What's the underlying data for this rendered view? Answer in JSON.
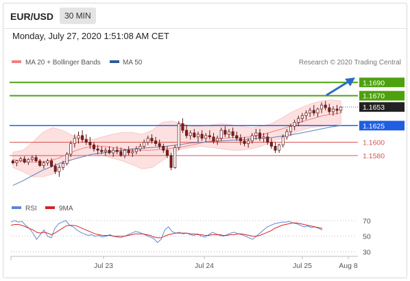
{
  "header": {
    "symbol": "EUR/USD",
    "timeframe": "30 MIN",
    "datetime": "Monday, July 27, 2020 1:51:08 AM CET"
  },
  "legend": {
    "ma20_bb": "MA 20 + Bollinger Bands",
    "ma50": "MA 50",
    "source": "Research © 2020 Trading Central"
  },
  "rsi_legend": {
    "rsi": "RSI",
    "ma9": "9MA"
  },
  "colors": {
    "resistance": "#4ea10e",
    "support": "#1f5fe0",
    "support_weak": "#d9534f",
    "current": "#222222",
    "candle_up": "#ffffff",
    "candle_down": "#8a1a1a",
    "ma20": "#f08080",
    "ma50": "#5b7fb8",
    "bb_fill": "#fde0e0",
    "rsi": "#5b85d6",
    "rsi_ma": "#d62222",
    "arrow": "#2a6cc4"
  },
  "chart_data": [
    {
      "type": "line",
      "title": "",
      "levels": {
        "resistance": [
          1.169,
          1.167
        ],
        "current": 1.1653,
        "pivot": 1.1625,
        "support": [
          1.16,
          1.158
        ],
        "labels": [
          "1.1690",
          "1.1670",
          "1.1653",
          "1.1625",
          "1.1600",
          "1.1580"
        ]
      },
      "x_ticks": [
        "Jul 23",
        "Jul 24",
        "Jul 25",
        "Aug 8"
      ],
      "ylim": [
        1.1515,
        1.1715
      ],
      "candles": [
        [
          1.1572,
          1.1574,
          1.1567,
          1.1569
        ],
        [
          1.1569,
          1.1573,
          1.1564,
          1.1572
        ],
        [
          1.1572,
          1.1578,
          1.157,
          1.1575
        ],
        [
          1.1575,
          1.1579,
          1.1568,
          1.157
        ],
        [
          1.157,
          1.1576,
          1.1566,
          1.1574
        ],
        [
          1.1574,
          1.158,
          1.1571,
          1.1577
        ],
        [
          1.1577,
          1.1581,
          1.157,
          1.1572
        ],
        [
          1.1572,
          1.1575,
          1.1563,
          1.1565
        ],
        [
          1.1565,
          1.1572,
          1.156,
          1.1569
        ],
        [
          1.1569,
          1.1575,
          1.1565,
          1.1572
        ],
        [
          1.1572,
          1.1576,
          1.1562,
          1.1564
        ],
        [
          1.1564,
          1.1568,
          1.1552,
          1.1556
        ],
        [
          1.1556,
          1.1566,
          1.1548,
          1.1562
        ],
        [
          1.1562,
          1.1572,
          1.1558,
          1.1568
        ],
        [
          1.1568,
          1.1585,
          1.1565,
          1.1582
        ],
        [
          1.1582,
          1.1602,
          1.1578,
          1.1598
        ],
        [
          1.1598,
          1.1612,
          1.1592,
          1.1606
        ],
        [
          1.1606,
          1.1616,
          1.1598,
          1.161
        ],
        [
          1.161,
          1.1618,
          1.16,
          1.1604
        ],
        [
          1.1604,
          1.1612,
          1.1596,
          1.16
        ],
        [
          1.16,
          1.1608,
          1.159,
          1.1596
        ],
        [
          1.1596,
          1.16,
          1.1586,
          1.159
        ],
        [
          1.159,
          1.1596,
          1.1582,
          1.1588
        ],
        [
          1.1588,
          1.1594,
          1.1582,
          1.1586
        ],
        [
          1.1586,
          1.1592,
          1.158,
          1.1588
        ],
        [
          1.1588,
          1.1594,
          1.1582,
          1.1584
        ],
        [
          1.1584,
          1.1592,
          1.1578,
          1.1588
        ],
        [
          1.1588,
          1.1594,
          1.1582,
          1.1586
        ],
        [
          1.1586,
          1.1592,
          1.1578,
          1.158
        ],
        [
          1.158,
          1.159,
          1.1576,
          1.1588
        ],
        [
          1.1588,
          1.1594,
          1.158,
          1.1584
        ],
        [
          1.1584,
          1.159,
          1.1578,
          1.1586
        ],
        [
          1.1586,
          1.1594,
          1.1582,
          1.159
        ],
        [
          1.159,
          1.1598,
          1.1586,
          1.1594
        ],
        [
          1.1594,
          1.1604,
          1.159,
          1.16
        ],
        [
          1.16,
          1.161,
          1.1596,
          1.1606
        ],
        [
          1.1606,
          1.1612,
          1.1598,
          1.1602
        ],
        [
          1.1602,
          1.1608,
          1.1594,
          1.1598
        ],
        [
          1.1598,
          1.1604,
          1.159,
          1.1594
        ],
        [
          1.1594,
          1.1598,
          1.1584,
          1.1588
        ],
        [
          1.1588,
          1.1594,
          1.1576,
          1.158
        ],
        [
          1.158,
          1.1584,
          1.1558,
          1.1562
        ],
        [
          1.1562,
          1.1596,
          1.156,
          1.1592
        ],
        [
          1.1592,
          1.1632,
          1.1588,
          1.1628
        ],
        [
          1.1628,
          1.1636,
          1.1614,
          1.1618
        ],
        [
          1.1618,
          1.1626,
          1.1606,
          1.161
        ],
        [
          1.161,
          1.1618,
          1.1604,
          1.1614
        ],
        [
          1.1614,
          1.162,
          1.1606,
          1.1608
        ],
        [
          1.1608,
          1.1616,
          1.16,
          1.1612
        ],
        [
          1.1612,
          1.1618,
          1.1602,
          1.1606
        ],
        [
          1.1606,
          1.1614,
          1.16,
          1.161
        ],
        [
          1.161,
          1.1618,
          1.1604,
          1.1608
        ],
        [
          1.1608,
          1.1614,
          1.1598,
          1.1602
        ],
        [
          1.1602,
          1.161,
          1.1596,
          1.1606
        ],
        [
          1.1606,
          1.1622,
          1.1602,
          1.1618
        ],
        [
          1.1618,
          1.1624,
          1.1608,
          1.1612
        ],
        [
          1.1612,
          1.162,
          1.1606,
          1.1616
        ],
        [
          1.1616,
          1.1622,
          1.1606,
          1.161
        ],
        [
          1.161,
          1.1616,
          1.1602,
          1.1606
        ],
        [
          1.1606,
          1.1612,
          1.1596,
          1.1602
        ],
        [
          1.1602,
          1.1608,
          1.1594,
          1.1598
        ],
        [
          1.1598,
          1.1606,
          1.1592,
          1.1602
        ],
        [
          1.1602,
          1.1614,
          1.1598,
          1.161
        ],
        [
          1.161,
          1.162,
          1.1604,
          1.1614
        ],
        [
          1.1614,
          1.162,
          1.1602,
          1.1606
        ],
        [
          1.1606,
          1.1614,
          1.16,
          1.1608
        ],
        [
          1.1608,
          1.1614,
          1.1596,
          1.16
        ],
        [
          1.16,
          1.1606,
          1.159,
          1.1594
        ],
        [
          1.1594,
          1.16,
          1.1584,
          1.1588
        ],
        [
          1.1588,
          1.1598,
          1.1584,
          1.1596
        ],
        [
          1.1596,
          1.1612,
          1.1592,
          1.1608
        ],
        [
          1.1608,
          1.162,
          1.1604,
          1.1616
        ],
        [
          1.1616,
          1.1628,
          1.161,
          1.1624
        ],
        [
          1.1624,
          1.1634,
          1.1618,
          1.163
        ],
        [
          1.163,
          1.164,
          1.1624,
          1.1636
        ],
        [
          1.1636,
          1.1644,
          1.163,
          1.164
        ],
        [
          1.164,
          1.1648,
          1.1634,
          1.1644
        ],
        [
          1.1644,
          1.1652,
          1.1638,
          1.1648
        ],
        [
          1.1648,
          1.1656,
          1.164,
          1.1644
        ],
        [
          1.1644,
          1.1652,
          1.1638,
          1.165
        ],
        [
          1.165,
          1.166,
          1.1644,
          1.1656
        ],
        [
          1.1656,
          1.1662,
          1.1648,
          1.1652
        ],
        [
          1.1652,
          1.1658,
          1.1642,
          1.1646
        ],
        [
          1.1646,
          1.1654,
          1.164,
          1.165
        ],
        [
          1.165,
          1.1656,
          1.1642,
          1.1648
        ],
        [
          1.1648,
          1.1654,
          1.1644,
          1.1653
        ]
      ],
      "ma20": [
        1.1574,
        1.1572,
        1.157,
        1.157,
        1.1572,
        1.1576,
        1.1582,
        1.1588,
        1.1592,
        1.1594,
        1.1594,
        1.1592,
        1.159,
        1.1588,
        1.1588,
        1.1588,
        1.1589,
        1.159,
        1.1592,
        1.1594,
        1.1597,
        1.16,
        1.1603,
        1.1606,
        1.1607,
        1.1607,
        1.1608,
        1.161,
        1.1614,
        1.1618,
        1.1622,
        1.1627,
        1.1632,
        1.1636,
        1.164,
        1.1642,
        1.1644
      ],
      "ma50": [
        1.1535,
        1.1542,
        1.155,
        1.1558,
        1.1564,
        1.157,
        1.1574,
        1.1578,
        1.1582,
        1.1584,
        1.1586,
        1.1588,
        1.159,
        1.1591,
        1.1592,
        1.1593,
        1.1595,
        1.1597,
        1.1599,
        1.16,
        1.1601,
        1.1602,
        1.1603,
        1.1604,
        1.1605,
        1.1606,
        1.1607,
        1.1609,
        1.1611,
        1.1614,
        1.1617,
        1.162,
        1.1623,
        1.1625
      ],
      "bb_upper": [
        1.1585,
        1.1588,
        1.16,
        1.1615,
        1.1622,
        1.1618,
        1.161,
        1.1606,
        1.1604,
        1.1608,
        1.1612,
        1.1615,
        1.1615,
        1.1612,
        1.1618,
        1.163,
        1.1632,
        1.1628,
        1.1624,
        1.1624,
        1.1626,
        1.1628,
        1.1626,
        1.1624,
        1.1622,
        1.1624,
        1.1628,
        1.1636,
        1.1645,
        1.1652,
        1.1658,
        1.1662,
        1.1664,
        1.1662
      ],
      "bb_lower": [
        1.1562,
        1.1556,
        1.1548,
        1.1548,
        1.1552,
        1.1565,
        1.1574,
        1.158,
        1.1582,
        1.158,
        1.1576,
        1.1572,
        1.1566,
        1.156,
        1.1562,
        1.1572,
        1.1585,
        1.159,
        1.1592,
        1.1594,
        1.1592,
        1.159,
        1.1588,
        1.1588,
        1.159,
        1.1594,
        1.16,
        1.1606,
        1.1612,
        1.1618,
        1.1622,
        1.1624,
        1.1625,
        1.1628
      ]
    },
    {
      "type": "line",
      "title": "",
      "yticks": [
        70,
        50,
        30
      ],
      "ylim": [
        26,
        76
      ],
      "rsi": [
        68,
        70,
        68,
        69,
        64,
        60,
        54,
        46,
        52,
        58,
        50,
        48,
        60,
        66,
        68,
        70,
        64,
        62,
        58,
        55,
        53,
        51,
        52,
        50,
        51,
        49,
        50,
        52,
        50,
        49,
        48,
        50,
        52,
        54,
        56,
        55,
        53,
        51,
        49,
        47,
        42,
        46,
        58,
        62,
        56,
        54,
        55,
        53,
        54,
        52,
        51,
        53,
        50,
        49,
        52,
        55,
        53,
        51,
        50,
        52,
        54,
        55,
        53,
        52,
        50,
        48,
        46,
        50,
        54,
        58,
        62,
        64,
        66,
        67,
        68,
        68,
        69,
        67,
        66,
        64,
        62,
        63,
        61,
        62,
        60,
        58
      ],
      "rsi_ma": [
        64,
        65,
        65,
        64,
        62,
        60,
        58,
        55,
        54,
        55,
        54,
        52,
        54,
        57,
        60,
        63,
        64,
        64,
        63,
        61,
        59,
        57,
        55,
        53,
        52,
        51,
        51,
        51,
        50,
        50,
        50,
        50,
        51,
        52,
        53,
        53,
        53,
        52,
        51,
        49,
        48,
        48,
        50,
        52,
        53,
        54,
        54,
        54,
        54,
        53,
        53,
        52,
        52,
        51,
        51,
        52,
        52,
        52,
        51,
        51,
        52,
        52,
        53,
        53,
        52,
        51,
        50,
        50,
        51,
        53,
        55,
        57,
        60,
        62,
        64,
        65,
        66,
        67,
        67,
        66,
        65,
        64,
        63,
        62,
        61,
        60
      ]
    }
  ]
}
